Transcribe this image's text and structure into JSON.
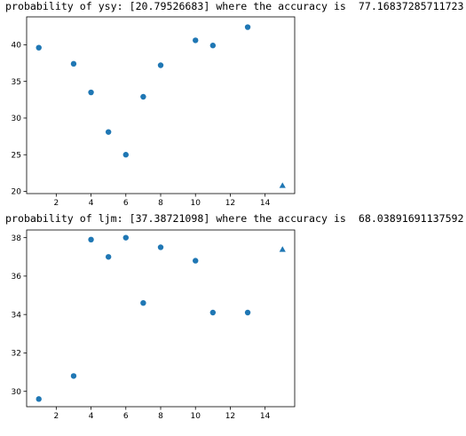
{
  "outputs": [
    "probability of ysy: [20.79526683] where the accuracy is  77.16837285711723",
    "probability of ljm: [37.38721098] where the accuracy is  68.03891691137592"
  ],
  "colors": {
    "marker": "#1f77b4",
    "axes": "#000000"
  },
  "chart_data": [
    {
      "type": "scatter",
      "title": "",
      "xlabel": "",
      "ylabel": "",
      "xlim": [
        0.3,
        15.7
      ],
      "ylim": [
        19.7,
        43.8
      ],
      "xticks": [
        2,
        4,
        6,
        8,
        10,
        12,
        14
      ],
      "yticks": [
        20,
        25,
        30,
        35,
        40
      ],
      "grid": false,
      "points": [
        {
          "x": 1,
          "y": 39.6
        },
        {
          "x": 3,
          "y": 37.4
        },
        {
          "x": 4,
          "y": 33.5
        },
        {
          "x": 5,
          "y": 28.1
        },
        {
          "x": 6,
          "y": 25.0
        },
        {
          "x": 7,
          "y": 32.9
        },
        {
          "x": 8,
          "y": 37.2
        },
        {
          "x": 10,
          "y": 40.6
        },
        {
          "x": 11,
          "y": 39.9
        },
        {
          "x": 13,
          "y": 42.4
        }
      ],
      "prediction": {
        "x": 15,
        "y": 20.79526683,
        "marker": "triangle"
      }
    },
    {
      "type": "scatter",
      "title": "",
      "xlabel": "",
      "ylabel": "",
      "xlim": [
        0.3,
        15.7
      ],
      "ylim": [
        29.2,
        38.4
      ],
      "xticks": [
        2,
        4,
        6,
        8,
        10,
        12,
        14
      ],
      "yticks": [
        30,
        32,
        34,
        36,
        38
      ],
      "grid": false,
      "points": [
        {
          "x": 1,
          "y": 29.6
        },
        {
          "x": 3,
          "y": 30.8
        },
        {
          "x": 4,
          "y": 37.9
        },
        {
          "x": 5,
          "y": 37.0
        },
        {
          "x": 6,
          "y": 38.0
        },
        {
          "x": 7,
          "y": 34.6
        },
        {
          "x": 8,
          "y": 37.5
        },
        {
          "x": 10,
          "y": 36.8
        },
        {
          "x": 11,
          "y": 34.1
        },
        {
          "x": 13,
          "y": 34.1
        }
      ],
      "prediction": {
        "x": 15,
        "y": 37.38721098,
        "marker": "triangle"
      }
    }
  ]
}
